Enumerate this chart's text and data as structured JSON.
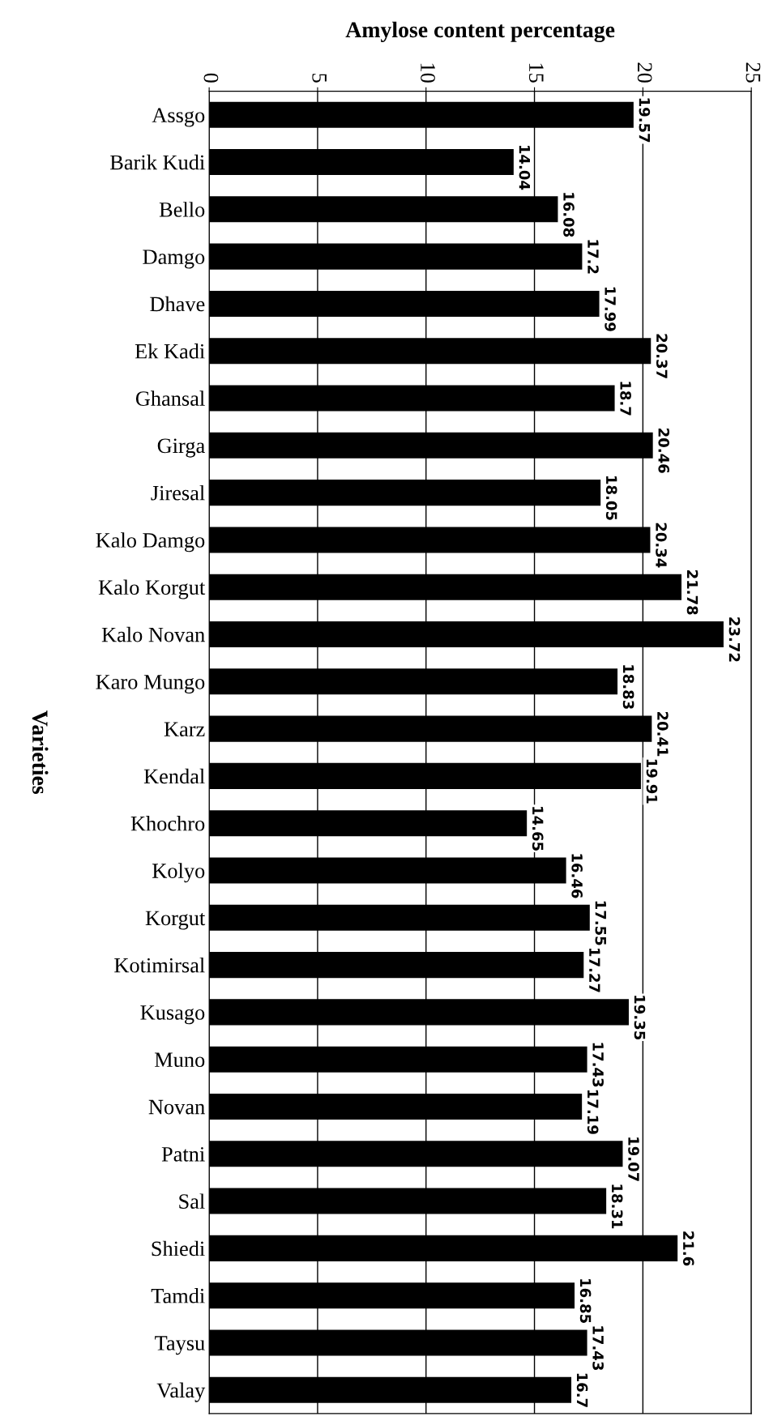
{
  "chart_data": {
    "type": "bar",
    "orientation": "horizontal",
    "title": "Amylose content percentage",
    "ylabel": "Varieties",
    "categories": [
      "Assgo",
      "Barik Kudi",
      "Bello",
      "Damgo",
      "Dhave",
      "Ek Kadi",
      "Ghansal",
      "Girga",
      "Jiresal",
      "Kalo Damgo",
      "Kalo Korgut",
      "Kalo Novan",
      "Karo Mungo",
      "Karz",
      "Kendal",
      "Khochro",
      "Kolyo",
      "Korgut",
      "Kotimirsal",
      "Kusago",
      "Muno",
      "Novan",
      "Patni",
      "Sal",
      "Shiedi",
      "Tamdi",
      "Taysu",
      "Valay"
    ],
    "values": [
      19.57,
      14.04,
      16.08,
      17.2,
      17.99,
      20.37,
      18.7,
      20.46,
      18.05,
      20.34,
      21.78,
      23.72,
      18.83,
      20.41,
      19.91,
      14.65,
      16.46,
      17.55,
      17.27,
      19.35,
      17.43,
      17.19,
      19.07,
      18.31,
      21.6,
      16.85,
      17.43,
      16.7
    ],
    "color": "#000000",
    "xlim": [
      0,
      25
    ],
    "xticks": [
      0,
      5,
      10,
      15,
      20,
      25
    ],
    "grid": "x",
    "data_labels": true,
    "legend": false
  }
}
